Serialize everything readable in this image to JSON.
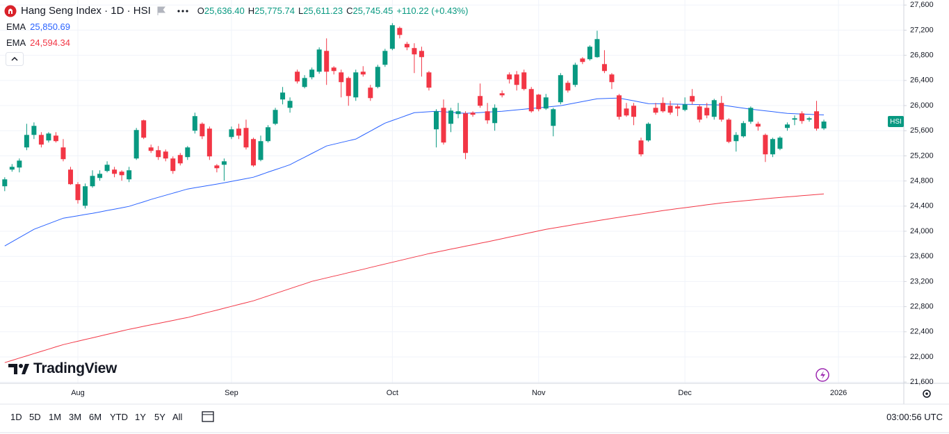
{
  "chart_data": {
    "type": "candlestick",
    "title": "Hang Seng Index · 1D · HSI",
    "legend_ohlc": [
      {
        "key": "O",
        "value": "25,636.40"
      },
      {
        "key": "H",
        "value": "25,775.74"
      },
      {
        "key": "L",
        "value": "25,611.23"
      },
      {
        "key": "C",
        "value": "25,745.45"
      }
    ],
    "change_label": "+110.22 (+0.43%)",
    "symbol_tag": "HSI",
    "up_color": "#089981",
    "down_color": "#f23645",
    "categories": [
      null,
      null,
      null,
      null,
      null,
      null,
      null,
      null,
      null,
      null,
      "Aug",
      null,
      null,
      null,
      null,
      null,
      null,
      null,
      null,
      null,
      null,
      null,
      null,
      null,
      null,
      null,
      null,
      null,
      null,
      null,
      null,
      "Sep",
      null,
      null,
      null,
      null,
      null,
      null,
      null,
      null,
      null,
      null,
      null,
      null,
      null,
      null,
      null,
      null,
      null,
      null,
      null,
      null,
      null,
      "Oct",
      null,
      null,
      null,
      null,
      null,
      null,
      null,
      null,
      null,
      null,
      null,
      null,
      null,
      null,
      null,
      null,
      null,
      null,
      null,
      "Nov",
      null,
      null,
      null,
      null,
      null,
      null,
      null,
      null,
      null,
      null,
      null,
      null,
      null,
      null,
      null,
      null,
      null,
      null,
      null,
      "Dec",
      null,
      null,
      null,
      null,
      null,
      null,
      null,
      null,
      null,
      null,
      null,
      null,
      null,
      null,
      null,
      null,
      null,
      null,
      null,
      null,
      "2026"
    ],
    "open": [
      24716,
      24981,
      25014,
      25334,
      25533,
      25533,
      25445,
      25522,
      25334,
      24981,
      24749,
      24406,
      24716,
      24848,
      24959,
      24981,
      24948,
      24826,
      25158,
      25765,
      25334,
      25290,
      25268,
      25158,
      25213,
      25180,
      25600,
      25710,
      25633,
      25047,
      25058,
      25500,
      25633,
      25644,
      25467,
      25135,
      25434,
      25710,
      26097,
      25964,
      26539,
      26296,
      26450,
      26539,
      26870,
      26605,
      26528,
      26439,
      26130,
      26539,
      26285,
      26296,
      26649,
      26903,
      27235,
      26981,
      26915,
      26870,
      26528,
      25622,
      25964,
      25710,
      25865,
      25876,
      25887,
      26152,
      25909,
      25721,
      26196,
      26495,
      26495,
      26528,
      26263,
      26174,
      25953,
      25677,
      26053,
      26362,
      26329,
      26749,
      26738,
      26771,
      26660,
      26495,
      26163,
      25953,
      25997,
      25445,
      25445,
      25964,
      26042,
      25997,
      25986,
      25931,
      26152,
      25986,
      25964,
      25821,
      26042,
      25776,
      25434,
      25511,
      25743,
      25710,
      25533,
      25224,
      25312,
      25644,
      25776,
      25876,
      25776,
      25909,
      25636.4,
      null,
      null
    ],
    "high": [
      24859,
      25069,
      25158,
      25710,
      25732,
      25577,
      25577,
      25577,
      25467,
      25025,
      24782,
      24760,
      24970,
      24970,
      25113,
      25025,
      24970,
      25025,
      25644,
      25776,
      25379,
      25356,
      25301,
      25191,
      25246,
      25356,
      25887,
      25732,
      25666,
      25069,
      25158,
      25666,
      25710,
      25776,
      25489,
      25522,
      25688,
      25964,
      26296,
      26130,
      26572,
      26484,
      26605,
      26926,
      27069,
      26627,
      26572,
      26461,
      26572,
      26627,
      26329,
      26649,
      26903,
      27312,
      27257,
      27014,
      26992,
      26937,
      26550,
      25942,
      26097,
      25964,
      26042,
      25909,
      25909,
      26351,
      26042,
      26019,
      26240,
      26528,
      26550,
      26572,
      26296,
      26185,
      26185,
      25964,
      26517,
      26395,
      26682,
      26771,
      26959,
      27191,
      26881,
      26517,
      26185,
      26042,
      26042,
      25489,
      25732,
      26042,
      26130,
      26075,
      26019,
      26130,
      26263,
      26019,
      26042,
      26108,
      26152,
      25798,
      25577,
      25754,
      25986,
      25743,
      25555,
      25489,
      25511,
      25732,
      25843,
      25909,
      25821,
      26075,
      25775.74,
      null,
      null
    ],
    "low": [
      24638,
      24948,
      24937,
      25290,
      25467,
      25334,
      25412,
      25412,
      25113,
      24738,
      24439,
      24362,
      24693,
      24804,
      24937,
      24859,
      24804,
      24782,
      25135,
      25467,
      25246,
      25135,
      25113,
      24914,
      25047,
      25135,
      25555,
      25467,
      25135,
      24937,
      24804,
      25467,
      25467,
      25301,
      25025,
      25113,
      25412,
      25688,
      26019,
      25887,
      26351,
      26274,
      26417,
      26506,
      26329,
      26495,
      26130,
      25997,
      26075,
      26461,
      26075,
      26274,
      26616,
      26881,
      27069,
      26881,
      26517,
      26461,
      26240,
      25334,
      25379,
      25577,
      25798,
      25147,
      25821,
      25964,
      25710,
      25600,
      26130,
      26351,
      26240,
      26240,
      25887,
      25909,
      25931,
      25511,
      26019,
      26207,
      26296,
      26660,
      26716,
      26760,
      26517,
      26263,
      25776,
      25821,
      25688,
      25191,
      25423,
      25854,
      25887,
      25854,
      25832,
      25909,
      26019,
      25732,
      25798,
      25776,
      25743,
      25401,
      25268,
      25489,
      25710,
      25600,
      25102,
      25180,
      25290,
      25600,
      25688,
      25710,
      25743,
      25600,
      25611.23,
      null,
      null
    ],
    "close": [
      24826,
      25025,
      25124,
      25533,
      25677,
      25379,
      25555,
      25434,
      25147,
      24749,
      24495,
      24716,
      24881,
      24914,
      25058,
      24914,
      24892,
      24970,
      25611,
      25489,
      25279,
      25180,
      25158,
      24959,
      25080,
      25334,
      25832,
      25511,
      25191,
      25003,
      25113,
      25622,
      25522,
      25334,
      25047,
      25434,
      25655,
      25931,
      26207,
      26075,
      26384,
      26439,
      26572,
      26892,
      26539,
      26550,
      26373,
      26152,
      26528,
      26495,
      26119,
      26616,
      26870,
      27279,
      27124,
      26926,
      26815,
      26771,
      26285,
      25909,
      25412,
      25920,
      25909,
      25246,
      25854,
      25997,
      25765,
      25964,
      26163,
      26417,
      26329,
      26263,
      25909,
      25942,
      26130,
      25942,
      26484,
      26240,
      26649,
      26694,
      26937,
      27058,
      26550,
      26373,
      25821,
      25843,
      25821,
      25224,
      25710,
      25887,
      25909,
      25887,
      25953,
      26019,
      26064,
      25776,
      25843,
      26086,
      25776,
      25423,
      25533,
      25721,
      25964,
      25666,
      25224,
      25467,
      25489,
      25699,
      25798,
      25754,
      25798,
      25633,
      25745.45,
      null,
      null
    ],
    "overlays": [
      {
        "name": "EMA",
        "color": "#2962ff",
        "last_value_label": "25,850.69",
        "values": [
          23766,
          23832,
          23898,
          23965,
          24031,
          24075,
          24120,
          24164,
          24208,
          24227,
          24247,
          24266,
          24285,
          24307,
          24330,
          24352,
          24374,
          24396,
          24433,
          24469,
          24506,
          24539,
          24572,
          24606,
          24639,
          24672,
          24692,
          24712,
          24731,
          24751,
          24771,
          24793,
          24816,
          24838,
          24860,
          24900,
          24940,
          24979,
          25019,
          25059,
          25119,
          25178,
          25238,
          25297,
          25357,
          25385,
          25412,
          25440,
          25467,
          25531,
          25594,
          25658,
          25721,
          25763,
          25804,
          25846,
          25887,
          25894,
          25902,
          25909,
          25901,
          25893,
          25884,
          25876,
          25883,
          25889,
          25896,
          25902,
          25909,
          25920,
          25932,
          25943,
          25954,
          25965,
          25976,
          25987,
          25998,
          26020,
          26042,
          26064,
          26086,
          26108,
          26112,
          26116,
          26120,
          26098,
          26076,
          26053,
          26031,
          26029,
          26027,
          26024,
          26022,
          26020,
          26018,
          26016,
          26013,
          26011,
          26009,
          25992,
          25976,
          25959,
          25943,
          25930,
          25916,
          25903,
          25889,
          25876,
          25871,
          25866,
          25861,
          25856,
          25850.69,
          null,
          null
        ]
      },
      {
        "name": "EMA",
        "color": "#f23645",
        "last_value_label": "24,594.34",
        "values": [
          21909,
          21945,
          21981,
          22017,
          22053,
          22088,
          22124,
          22160,
          22196,
          22223,
          22250,
          22277,
          22304,
          22332,
          22359,
          22386,
          22413,
          22440,
          22463,
          22487,
          22510,
          22534,
          22557,
          22580,
          22604,
          22627,
          22657,
          22686,
          22716,
          22745,
          22775,
          22804,
          22834,
          22863,
          22893,
          22932,
          22970,
          23009,
          23047,
          23086,
          23125,
          23163,
          23202,
          23230,
          23257,
          23285,
          23312,
          23340,
          23368,
          23395,
          23423,
          23451,
          23478,
          23506,
          23534,
          23561,
          23589,
          23616,
          23644,
          23668,
          23691,
          23715,
          23738,
          23762,
          23785,
          23809,
          23832,
          23857,
          23882,
          23907,
          23932,
          23956,
          23981,
          24006,
          24031,
          24050,
          24070,
          24089,
          24109,
          24128,
          24147,
          24167,
          24186,
          24204,
          24222,
          24240,
          24258,
          24275,
          24293,
          24311,
          24329,
          24344,
          24360,
          24375,
          24390,
          24405,
          24421,
          24436,
          24451,
          24462,
          24473,
          24484,
          24495,
          24506,
          24517,
          24528,
          24537,
          24547,
          24556,
          24566,
          24575,
          24585,
          24594.34,
          null,
          null
        ]
      }
    ],
    "ylim": [
      21580,
      27680
    ],
    "yticks": [
      {
        "value": 21600,
        "label": "21,600"
      },
      {
        "value": 22000,
        "label": "22,000"
      },
      {
        "value": 22400,
        "label": "22,400"
      },
      {
        "value": 22800,
        "label": "22,800"
      },
      {
        "value": 23200,
        "label": "23,200"
      },
      {
        "value": 23600,
        "label": "23,600"
      },
      {
        "value": 24000,
        "label": "24,000"
      },
      {
        "value": 24400,
        "label": "24,400"
      },
      {
        "value": 24800,
        "label": "24,800"
      },
      {
        "value": 25200,
        "label": "25,200"
      },
      {
        "value": 25600,
        "label": "25,600"
      },
      {
        "value": 26000,
        "label": "26,000"
      },
      {
        "value": 26400,
        "label": "26,400"
      },
      {
        "value": 26800,
        "label": "26,800"
      },
      {
        "value": 27200,
        "label": "27,200"
      },
      {
        "value": 27600,
        "label": "27,600"
      }
    ],
    "grid": true,
    "brand": "TradingView",
    "periods": [
      "1D",
      "5D",
      "1M",
      "3M",
      "6M",
      "YTD",
      "1Y",
      "5Y",
      "All"
    ],
    "clock": "03:00:56 UTC"
  }
}
